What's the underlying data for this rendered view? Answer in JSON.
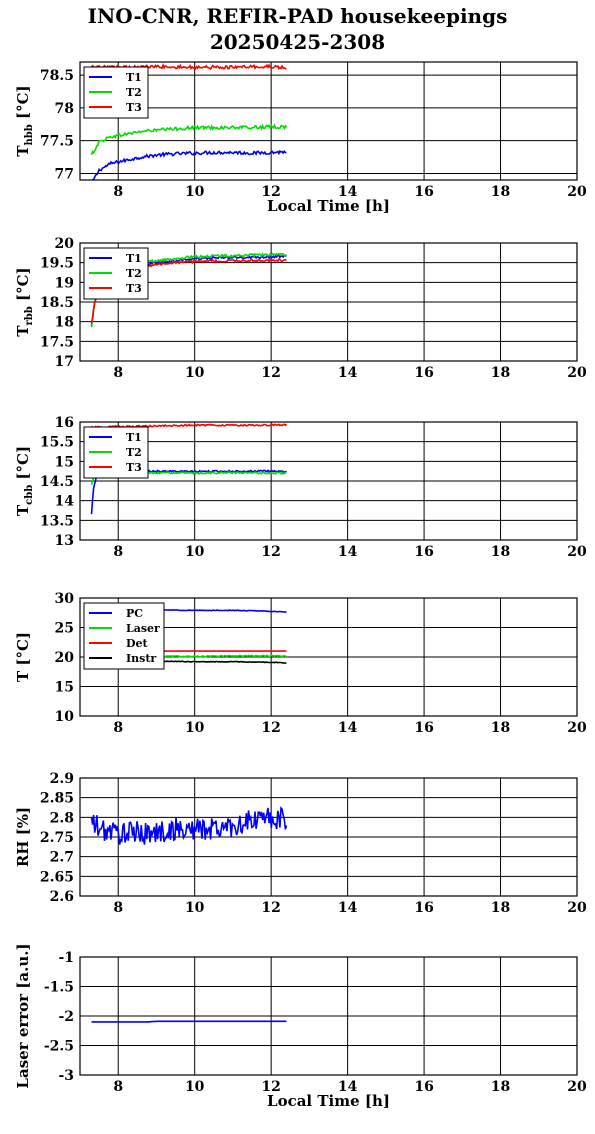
{
  "figure": {
    "title_line1": "INO-CNR, REFIR-PAD housekeepings",
    "title_line2": "20250425-2308"
  },
  "chart_data": [
    {
      "id": "hbb",
      "type": "line",
      "title": "",
      "ylabel_main": "T",
      "ylabel_sub": "hbb",
      "ylabel_unit": "[°C]",
      "xlabel": "Local Time [h]",
      "xlim": [
        7,
        20
      ],
      "ylim": [
        76.9,
        78.7
      ],
      "xticks": [
        "8",
        "10",
        "12",
        "14",
        "16",
        "18",
        "20"
      ],
      "ytick_values": [
        77,
        77.5,
        78,
        78.5
      ],
      "ytick_labels": [
        "77",
        "77.5",
        "78",
        "78.5"
      ],
      "legend_position": "top-left",
      "grid": true,
      "series": [
        {
          "name": "T1",
          "color": "#0000ff",
          "noise": 0.025,
          "x": [
            7.3,
            7.5,
            7.8,
            8.2,
            8.6,
            9.0,
            9.5,
            10.0,
            10.5,
            11.0,
            11.5,
            12.0,
            12.4
          ],
          "y": [
            76.85,
            77.05,
            77.15,
            77.2,
            77.25,
            77.28,
            77.3,
            77.31,
            77.32,
            77.32,
            77.31,
            77.32,
            77.33
          ]
        },
        {
          "name": "T2",
          "color": "#00dd00",
          "noise": 0.025,
          "x": [
            7.3,
            7.5,
            7.8,
            8.2,
            8.6,
            9.0,
            9.5,
            10.0,
            10.5,
            11.0,
            11.5,
            12.0,
            12.4
          ],
          "y": [
            77.28,
            77.48,
            77.56,
            77.6,
            77.64,
            77.66,
            77.68,
            77.7,
            77.7,
            77.7,
            77.7,
            77.71,
            77.71
          ]
        },
        {
          "name": "T3",
          "color": "#ff0000",
          "noise": 0.025,
          "x": [
            7.3,
            8.0,
            9.0,
            10.0,
            11.0,
            12.0,
            12.4
          ],
          "y": [
            78.62,
            78.62,
            78.63,
            78.62,
            78.62,
            78.63,
            78.61
          ]
        }
      ]
    },
    {
      "id": "rbb",
      "type": "line",
      "title": "",
      "ylabel_main": "T",
      "ylabel_sub": "rbb",
      "ylabel_unit": "[°C]",
      "xlabel": "",
      "xlim": [
        7,
        20
      ],
      "ylim": [
        17,
        20
      ],
      "xticks": [
        "8",
        "10",
        "12",
        "14",
        "16",
        "18",
        "20"
      ],
      "ytick_values": [
        17,
        17.5,
        18,
        18.5,
        19,
        19.5,
        20
      ],
      "ytick_labels": [
        "17",
        "17.5",
        "18",
        "18.5",
        "19",
        "19.5",
        "20"
      ],
      "legend_position": "top-left",
      "grid": true,
      "series": [
        {
          "name": "T1",
          "color": "#0000ff",
          "noise": 0.03,
          "x": [
            7.3,
            7.4,
            7.6,
            8.0,
            8.5,
            9.0,
            9.5,
            10.0,
            10.5,
            11.0,
            11.5,
            12.0,
            12.4
          ],
          "y": [
            17.9,
            18.6,
            19.1,
            19.3,
            19.45,
            19.5,
            19.55,
            19.6,
            19.62,
            19.63,
            19.64,
            19.65,
            19.66
          ]
        },
        {
          "name": "T2",
          "color": "#00dd00",
          "noise": 0.03,
          "x": [
            7.3,
            7.4,
            7.6,
            8.0,
            8.5,
            9.0,
            9.5,
            10.0,
            10.5,
            11.0,
            11.5,
            12.0,
            12.4
          ],
          "y": [
            17.85,
            18.6,
            19.1,
            19.35,
            19.5,
            19.55,
            19.6,
            19.65,
            19.67,
            19.68,
            19.69,
            19.7,
            19.7
          ]
        },
        {
          "name": "T3",
          "color": "#ff0000",
          "noise": 0.03,
          "x": [
            7.3,
            7.4,
            7.6,
            8.0,
            8.5,
            9.0,
            9.5,
            10.0,
            10.5,
            11.0,
            11.5,
            12.0,
            12.4
          ],
          "y": [
            17.95,
            18.55,
            19.05,
            19.25,
            19.4,
            19.45,
            19.5,
            19.53,
            19.54,
            19.55,
            19.55,
            19.56,
            19.56
          ]
        }
      ]
    },
    {
      "id": "cbb",
      "type": "line",
      "title": "",
      "ylabel_main": "T",
      "ylabel_sub": "cbb",
      "ylabel_unit": "[°C]",
      "xlabel": "",
      "xlim": [
        7,
        20
      ],
      "ylim": [
        13,
        16
      ],
      "xticks": [
        "8",
        "10",
        "12",
        "14",
        "16",
        "18",
        "20"
      ],
      "ytick_values": [
        13,
        13.5,
        14,
        14.5,
        15,
        15.5,
        16
      ],
      "ytick_labels": [
        "13",
        "13.5",
        "14",
        "14.5",
        "15",
        "15.5",
        "16"
      ],
      "legend_position": "top-left",
      "grid": true,
      "series": [
        {
          "name": "T1",
          "color": "#0000ff",
          "noise": 0.02,
          "x": [
            7.3,
            7.35,
            7.45,
            7.6,
            8.0,
            9.0,
            10.0,
            11.0,
            12.0,
            12.4
          ],
          "y": [
            13.65,
            14.3,
            14.7,
            14.75,
            14.75,
            14.75,
            14.74,
            14.75,
            14.75,
            14.74
          ]
        },
        {
          "name": "T2",
          "color": "#00dd00",
          "noise": 0.02,
          "x": [
            7.3,
            7.35,
            7.45,
            7.6,
            8.0,
            9.0,
            10.0,
            11.0,
            12.0,
            12.4
          ],
          "y": [
            14.4,
            14.55,
            14.68,
            14.7,
            14.7,
            14.71,
            14.7,
            14.71,
            14.7,
            14.7
          ]
        },
        {
          "name": "T3",
          "color": "#ff0000",
          "noise": 0.02,
          "x": [
            7.3,
            8.0,
            9.0,
            10.0,
            11.0,
            12.0,
            12.4
          ],
          "y": [
            15.87,
            15.88,
            15.9,
            15.92,
            15.92,
            15.92,
            15.93
          ]
        }
      ]
    },
    {
      "id": "temps",
      "type": "line",
      "title": "",
      "ylabel_main": "T [°C]",
      "ylabel_sub": "",
      "ylabel_unit": "",
      "xlabel": "",
      "xlim": [
        7,
        20
      ],
      "ylim": [
        10,
        30
      ],
      "xticks": [
        "8",
        "10",
        "12",
        "14",
        "16",
        "18",
        "20"
      ],
      "ytick_values": [
        10,
        15,
        20,
        25,
        30
      ],
      "ytick_labels": [
        "10",
        "15",
        "20",
        "25",
        "30"
      ],
      "legend_position": "top-left",
      "grid": true,
      "series": [
        {
          "name": "PC",
          "color": "#0000ff",
          "noise": 0.05,
          "x": [
            7.3,
            8.0,
            9.0,
            10.0,
            11.0,
            11.8,
            12.4
          ],
          "y": [
            28.0,
            28.0,
            28.0,
            27.9,
            27.9,
            27.8,
            27.6
          ]
        },
        {
          "name": "Laser",
          "color": "#00dd00",
          "noise": 0.1,
          "x": [
            7.3,
            8.0,
            9.0,
            10.0,
            11.0,
            12.0,
            12.4
          ],
          "y": [
            20.0,
            20.0,
            20.1,
            20.1,
            20.2,
            20.2,
            20.2
          ]
        },
        {
          "name": "Det",
          "color": "#ff0000",
          "noise": 0.0,
          "x": [
            7.3,
            8.0,
            9.0,
            10.0,
            11.0,
            12.0,
            12.4
          ],
          "y": [
            21.0,
            21.0,
            21.0,
            21.0,
            21.0,
            21.0,
            21.0
          ]
        },
        {
          "name": "Instr",
          "color": "#000000",
          "noise": 0.05,
          "x": [
            7.3,
            8.0,
            9.0,
            10.0,
            11.0,
            12.0,
            12.4
          ],
          "y": [
            19.3,
            19.3,
            19.3,
            19.2,
            19.2,
            19.1,
            19.0
          ]
        }
      ]
    },
    {
      "id": "rh",
      "type": "line",
      "title": "",
      "ylabel_main": "RH [%]",
      "ylabel_sub": "",
      "ylabel_unit": "",
      "xlabel": "",
      "xlim": [
        7,
        20
      ],
      "ylim": [
        2.6,
        2.9
      ],
      "xticks": [
        "8",
        "10",
        "12",
        "14",
        "16",
        "18",
        "20"
      ],
      "ytick_values": [
        2.6,
        2.65,
        2.7,
        2.75,
        2.8,
        2.85,
        2.9
      ],
      "ytick_labels": [
        "2.6",
        "2.65",
        "2.7",
        "2.75",
        "2.8",
        "2.85",
        "2.9"
      ],
      "legend_position": "none",
      "grid": true,
      "series": [
        {
          "name": "",
          "color": "#0000ff",
          "noise": 0.03,
          "x": [
            7.3,
            7.5,
            8.0,
            8.5,
            9.0,
            9.5,
            10.0,
            10.5,
            11.0,
            11.5,
            12.0,
            12.4
          ],
          "y": [
            2.79,
            2.77,
            2.76,
            2.76,
            2.76,
            2.77,
            2.77,
            2.77,
            2.78,
            2.79,
            2.8,
            2.79
          ]
        }
      ]
    },
    {
      "id": "laser",
      "type": "line",
      "title": "",
      "ylabel_main": "Laser error [a.u.]",
      "ylabel_sub": "",
      "ylabel_unit": "",
      "xlabel": "Local Time [h]",
      "xlim": [
        7,
        20
      ],
      "ylim": [
        -3,
        -1
      ],
      "xticks": [
        "8",
        "10",
        "12",
        "14",
        "16",
        "18",
        "20"
      ],
      "ytick_values": [
        -3,
        -2.5,
        -2,
        -1.5,
        -1
      ],
      "ytick_labels": [
        "-3",
        "-2.5",
        "-2",
        "-1.5",
        "-1"
      ],
      "legend_position": "none",
      "grid": true,
      "series": [
        {
          "name": "",
          "color": "#0000ff",
          "noise": 0.0,
          "x": [
            7.3,
            8.8,
            9.0,
            10.0,
            11.0,
            12.0,
            12.4
          ],
          "y": [
            -2.1,
            -2.1,
            -2.09,
            -2.09,
            -2.09,
            -2.09,
            -2.09
          ]
        }
      ]
    }
  ]
}
